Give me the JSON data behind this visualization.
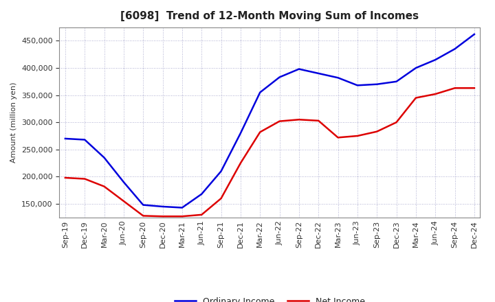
{
  "title": "[6098]  Trend of 12-Month Moving Sum of Incomes",
  "ylabel": "Amount (million yen)",
  "background_color": "#ffffff",
  "x_labels": [
    "Sep-19",
    "Dec-19",
    "Mar-20",
    "Jun-20",
    "Sep-20",
    "Dec-20",
    "Mar-21",
    "Jun-21",
    "Sep-21",
    "Dec-21",
    "Mar-22",
    "Jun-22",
    "Sep-22",
    "Dec-22",
    "Mar-23",
    "Jun-23",
    "Sep-23",
    "Dec-23",
    "Mar-24",
    "Jun-24",
    "Sep-24",
    "Dec-24"
  ],
  "ordinary_income": [
    270000,
    268000,
    235000,
    190000,
    148000,
    145000,
    143000,
    168000,
    210000,
    280000,
    355000,
    383000,
    398000,
    390000,
    382000,
    368000,
    370000,
    375000,
    400000,
    415000,
    435000,
    462000
  ],
  "net_income": [
    198000,
    196000,
    182000,
    155000,
    128000,
    127000,
    127000,
    130000,
    160000,
    225000,
    282000,
    302000,
    305000,
    303000,
    272000,
    275000,
    283000,
    300000,
    345000,
    352000,
    363000,
    363000
  ],
  "ordinary_color": "#0000dd",
  "net_color": "#dd0000",
  "ylim_min": 125000,
  "ylim_max": 475000,
  "yticks": [
    150000,
    200000,
    250000,
    300000,
    350000,
    400000,
    450000
  ],
  "line_width": 1.8,
  "title_fontsize": 11,
  "legend_fontsize": 9,
  "axis_label_fontsize": 8,
  "tick_fontsize": 8
}
